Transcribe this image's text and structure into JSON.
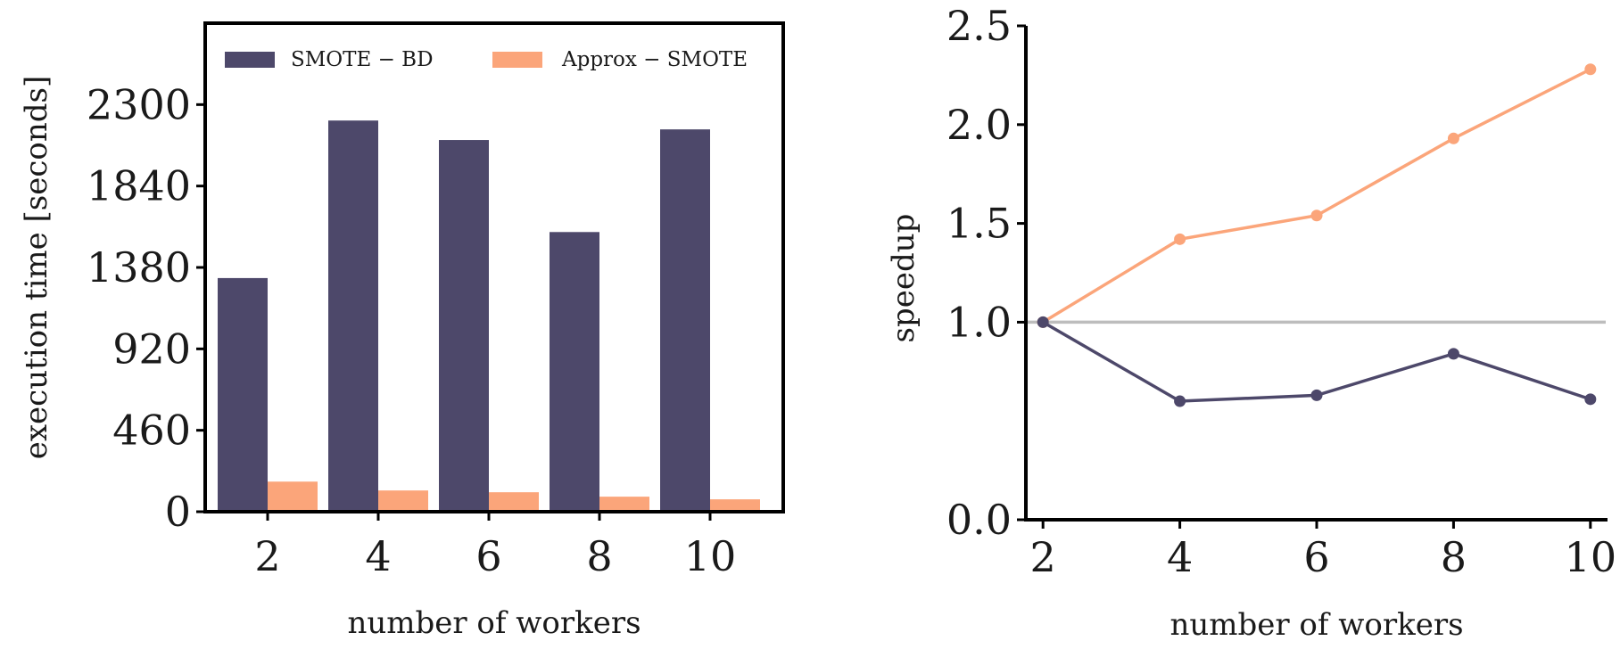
{
  "colors": {
    "smote_bd": "#4d486a",
    "approx_smote": "#fba57a",
    "reference_line": "#bdbdbd"
  },
  "chart_data": [
    {
      "type": "bar",
      "xlabel": "number of workers",
      "ylabel": "execution time [seconds]",
      "ylim": [
        0,
        2760
      ],
      "yticks": [
        0,
        460,
        920,
        1380,
        1840,
        2300
      ],
      "categories": [
        "2",
        "4",
        "6",
        "8",
        "10"
      ],
      "legend": {
        "placement": "top",
        "columns": 2
      },
      "series": [
        {
          "name": "SMOTE − BD",
          "color_key": "smote_bd",
          "values": [
            1320,
            2210,
            2100,
            1580,
            2160
          ]
        },
        {
          "name": "Approx − SMOTE",
          "color_key": "approx_smote",
          "values": [
            170,
            120,
            110,
            85,
            70
          ]
        }
      ]
    },
    {
      "type": "line",
      "xlabel": "number of workers",
      "ylabel": "speedup",
      "xlim": [
        1.75,
        10.25
      ],
      "ylim": [
        0,
        2.5
      ],
      "xticks": [
        2,
        4,
        6,
        8,
        10
      ],
      "yticks": [
        "0.0",
        "1.0",
        "1.5",
        "2.0",
        "2.5"
      ],
      "reference_line": {
        "y": 1.0
      },
      "series": [
        {
          "color_key": "approx_smote",
          "x": [
            2,
            4,
            6,
            8,
            10
          ],
          "y": [
            1.0,
            1.42,
            1.54,
            1.93,
            2.28
          ]
        },
        {
          "color_key": "smote_bd",
          "x": [
            2,
            4,
            6,
            8,
            10
          ],
          "y": [
            1.0,
            0.6,
            0.63,
            0.84,
            0.61
          ]
        }
      ]
    }
  ]
}
